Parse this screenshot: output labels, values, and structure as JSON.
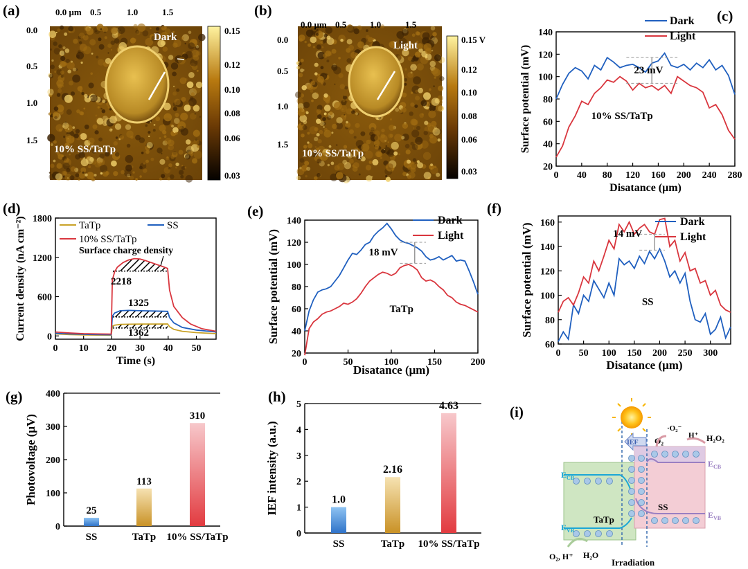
{
  "panels": {
    "a": "(a)",
    "b": "(b)",
    "c": "(c)",
    "d": "(d)",
    "e": "(e)",
    "f": "(f)",
    "g": "(g)",
    "h": "(h)",
    "i": "(i)"
  },
  "afm": {
    "a": {
      "label": "Dark",
      "sample": "10% SS/TaTp",
      "x_ticks": [
        "0.0 μm",
        "0.5",
        "1.0",
        "1.5"
      ],
      "y_ticks": [
        "0.0",
        "0.5",
        "1.0",
        "1.5"
      ],
      "colorbar_ticks": [
        "0.15",
        "0.12",
        "0.10",
        "0.08",
        "0.06",
        "0.03"
      ]
    },
    "b": {
      "label": "Light",
      "sample": "10% SS/TaTp",
      "x_ticks": [
        "0.0 μm",
        "0.5",
        "1.0",
        "1.5"
      ],
      "y_ticks": [
        "0.0",
        "0.5",
        "1.0",
        "1.5"
      ],
      "colorbar_ticks": [
        "0.15 V",
        "0.12",
        "0.10",
        "0.08",
        "0.06",
        "0.03"
      ]
    }
  },
  "chart_data": [
    {
      "id": "c",
      "type": "line",
      "xlabel": "Disatance (μm)",
      "ylabel": "Surface potential (mV)",
      "xlim": [
        0,
        280
      ],
      "ylim": [
        20,
        140
      ],
      "xticks": [
        0,
        40,
        80,
        120,
        160,
        200,
        240,
        280
      ],
      "yticks": [
        20,
        40,
        60,
        80,
        100,
        120,
        140
      ],
      "annotation": "23 mV",
      "sample": "10% SS/TaTp",
      "legend_position": "top-right",
      "series": [
        {
          "name": "Dark",
          "color": "#1f5fbf",
          "x": [
            0,
            10,
            20,
            30,
            40,
            50,
            60,
            70,
            80,
            90,
            100,
            110,
            120,
            130,
            140,
            150,
            160,
            170,
            180,
            190,
            200,
            210,
            220,
            230,
            240,
            250,
            260,
            270,
            280
          ],
          "y": [
            80,
            93,
            103,
            108,
            105,
            98,
            110,
            106,
            117,
            113,
            108,
            110,
            111,
            108,
            104,
            112,
            114,
            121,
            110,
            108,
            111,
            106,
            112,
            108,
            115,
            106,
            110,
            101,
            84
          ]
        },
        {
          "name": "Light",
          "color": "#d9363e",
          "x": [
            0,
            10,
            20,
            30,
            40,
            50,
            60,
            70,
            80,
            90,
            100,
            110,
            120,
            130,
            140,
            150,
            160,
            170,
            180,
            190,
            200,
            210,
            220,
            230,
            240,
            250,
            260,
            270,
            280
          ],
          "y": [
            28,
            38,
            55,
            65,
            78,
            75,
            85,
            90,
            97,
            95,
            100,
            96,
            88,
            94,
            90,
            92,
            88,
            92,
            85,
            100,
            96,
            92,
            90,
            86,
            72,
            75,
            66,
            52,
            44
          ]
        }
      ]
    },
    {
      "id": "d",
      "type": "line",
      "xlabel": "Time (s)",
      "ylabel": "Current density (nA cm⁻²)",
      "xlim": [
        0,
        57
      ],
      "ylim": [
        -50,
        1800
      ],
      "xticks": [
        0,
        10,
        20,
        30,
        40,
        50
      ],
      "yticks": [
        0,
        600,
        1200,
        1800
      ],
      "legend_position": "top",
      "annotations": {
        "title": "Surface charge density",
        "v1": "2218",
        "v2": "1325",
        "v3": "1362"
      },
      "series": [
        {
          "name": "TaTp",
          "color": "#c9a227",
          "x": [
            0,
            5,
            10,
            15,
            19.8,
            20.2,
            21,
            23,
            26,
            30,
            35,
            39.8,
            40.5,
            42,
            45,
            50,
            57
          ],
          "y": [
            30,
            20,
            15,
            12,
            10,
            150,
            165,
            175,
            178,
            180,
            182,
            183,
            140,
            100,
            70,
            50,
            35
          ]
        },
        {
          "name": "SS",
          "color": "#1f5fbf",
          "x": [
            0,
            5,
            10,
            15,
            19.8,
            20.2,
            21,
            23,
            26,
            30,
            35,
            39.8,
            40.5,
            42,
            45,
            50,
            57
          ],
          "y": [
            40,
            30,
            25,
            20,
            18,
            300,
            350,
            385,
            390,
            385,
            380,
            375,
            280,
            200,
            130,
            90,
            60
          ]
        },
        {
          "name": "10% SS/TaTp",
          "color": "#d9363e",
          "x": [
            0,
            5,
            10,
            15,
            19.8,
            20.2,
            21,
            22,
            24,
            26,
            28,
            30,
            32,
            34,
            36,
            38,
            39.8,
            40.5,
            42,
            45,
            48,
            52,
            57
          ],
          "y": [
            60,
            45,
            35,
            30,
            28,
            850,
            980,
            1050,
            1120,
            1160,
            1180,
            1175,
            1150,
            1120,
            1090,
            1060,
            1030,
            700,
            450,
            280,
            180,
            110,
            70
          ]
        }
      ]
    },
    {
      "id": "e",
      "type": "line",
      "xlabel": "Disatance (μm)",
      "ylabel": "Surface potential (mV)",
      "xlim": [
        0,
        200
      ],
      "ylim": [
        20,
        140
      ],
      "xticks": [
        0,
        50,
        100,
        150,
        200
      ],
      "yticks": [
        20,
        40,
        60,
        80,
        100,
        120,
        140
      ],
      "annotation": "18 mV",
      "sample": "TaTp",
      "legend_position": "top-right",
      "series": [
        {
          "name": "Dark",
          "color": "#1f5fbf",
          "x": [
            0,
            5,
            10,
            15,
            20,
            25,
            30,
            35,
            40,
            45,
            50,
            55,
            60,
            65,
            70,
            75,
            80,
            85,
            90,
            95,
            100,
            105,
            110,
            115,
            120,
            125,
            130,
            135,
            140,
            145,
            150,
            155,
            160,
            165,
            170,
            175,
            180,
            185,
            190,
            195,
            200
          ],
          "y": [
            40,
            58,
            68,
            75,
            77,
            78,
            80,
            85,
            90,
            97,
            104,
            110,
            109,
            113,
            118,
            120,
            126,
            130,
            133,
            137,
            132,
            126,
            122,
            120,
            119,
            117,
            115,
            112,
            107,
            104,
            105,
            107,
            104,
            106,
            108,
            103,
            104,
            103,
            94,
            84,
            73
          ]
        },
        {
          "name": "Light",
          "color": "#d9363e",
          "x": [
            0,
            5,
            10,
            15,
            20,
            25,
            30,
            35,
            40,
            45,
            50,
            55,
            60,
            65,
            70,
            75,
            80,
            85,
            90,
            95,
            100,
            105,
            110,
            115,
            120,
            125,
            130,
            135,
            140,
            145,
            150,
            155,
            160,
            165,
            170,
            175,
            180,
            185,
            190,
            195,
            200
          ],
          "y": [
            18,
            42,
            48,
            51,
            55,
            57,
            58,
            60,
            62,
            65,
            64,
            66,
            69,
            74,
            80,
            85,
            88,
            91,
            93,
            92,
            90,
            92,
            97,
            99,
            100,
            98,
            95,
            88,
            85,
            86,
            84,
            80,
            77,
            72,
            70,
            66,
            64,
            63,
            61,
            59,
            57
          ]
        }
      ]
    },
    {
      "id": "f",
      "type": "line",
      "xlabel": "Disatance (μm)",
      "ylabel": "Surface potential (mV)",
      "xlim": [
        0,
        340
      ],
      "ylim": [
        60,
        165
      ],
      "xticks": [
        0,
        50,
        100,
        150,
        200,
        250,
        300
      ],
      "yticks": [
        60,
        80,
        100,
        120,
        140,
        160
      ],
      "annotation": "14 mV",
      "sample": "SS",
      "legend_position": "top-right",
      "series": [
        {
          "name": "Dark",
          "color": "#1f5fbf",
          "x": [
            0,
            10,
            20,
            30,
            40,
            50,
            60,
            70,
            80,
            90,
            100,
            110,
            120,
            130,
            140,
            150,
            160,
            170,
            180,
            190,
            200,
            210,
            220,
            230,
            240,
            250,
            260,
            270,
            280,
            290,
            300,
            310,
            320,
            330,
            340
          ],
          "y": [
            62,
            70,
            64,
            92,
            85,
            100,
            95,
            112,
            105,
            98,
            110,
            100,
            130,
            125,
            128,
            122,
            132,
            126,
            136,
            130,
            138,
            128,
            115,
            120,
            110,
            118,
            95,
            80,
            78,
            85,
            68,
            72,
            82,
            65,
            74
          ]
        },
        {
          "name": "Light",
          "color": "#d9363e",
          "x": [
            0,
            10,
            20,
            30,
            40,
            50,
            60,
            70,
            80,
            90,
            100,
            110,
            120,
            130,
            140,
            150,
            160,
            170,
            180,
            190,
            200,
            210,
            220,
            230,
            240,
            250,
            260,
            270,
            280,
            290,
            300,
            310,
            320,
            330,
            340
          ],
          "y": [
            86,
            95,
            98,
            92,
            102,
            115,
            110,
            128,
            120,
            132,
            145,
            138,
            158,
            152,
            160,
            150,
            155,
            158,
            152,
            150,
            162,
            163,
            140,
            145,
            128,
            135,
            120,
            122,
            110,
            112,
            100,
            104,
            92,
            88,
            86
          ]
        }
      ]
    },
    {
      "id": "g",
      "type": "bar",
      "ylabel": "Photovoltage (μV)",
      "ylim": [
        0,
        400
      ],
      "yticks": [
        0,
        100,
        200,
        300,
        400
      ],
      "categories": [
        "SS",
        "TaTp",
        "10% SS/TaTp"
      ],
      "values": [
        25,
        113,
        310
      ],
      "value_labels": [
        "25",
        "113",
        "310"
      ],
      "colors": [
        "#3d7fd1",
        "#d4a43a",
        "#e24a4a"
      ]
    },
    {
      "id": "h",
      "type": "bar",
      "ylabel": "IEF intensity (a.u.)",
      "ylim": [
        0,
        5
      ],
      "yticks": [
        0,
        1,
        2,
        3,
        4,
        5
      ],
      "categories": [
        "SS",
        "TaTp",
        "10% SS/TaTp"
      ],
      "values": [
        1.0,
        2.16,
        4.63
      ],
      "value_labels": [
        "1.0",
        "2.16",
        "4.63"
      ],
      "colors": [
        "#3d7fd1",
        "#d4a43a",
        "#e24a4a"
      ]
    }
  ],
  "scheme": {
    "ief": "IEF",
    "o2_top": "O₂",
    "o2_radical": "·O₂⁻",
    "h_plus": "H⁺",
    "h2o2": "H₂O₂",
    "ecb_left": "E",
    "ecb_left_sub": "CB",
    "ecb_right": "E",
    "ecb_right_sub": "CB",
    "evb_left": "E",
    "evb_left_sub": "VB",
    "evb_right": "E",
    "evb_right_sub": "VB",
    "tatp": "TaTp",
    "ss": "SS",
    "bottom_reactants": "O₂, H⁺",
    "h2o": "H₂O",
    "irradiation": "Irradiation"
  }
}
